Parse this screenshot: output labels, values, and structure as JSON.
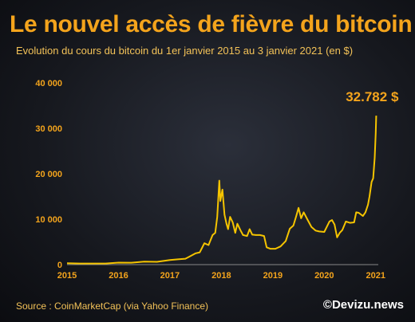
{
  "title": "Le nouvel accès de fièvre du bitcoin",
  "subtitle": "Evolution du cours du bitcoin du 1er janvier 2015 au 3 janvier 2021 (en $)",
  "source": "Source : CoinMarketCap (via Yahoo Finance)",
  "brand": "©Devizu.news",
  "colors": {
    "accent": "#f4a41c",
    "line": "#f5c400"
  },
  "chart_data": {
    "type": "line",
    "xlim": [
      2015.0,
      2021.05
    ],
    "ylim": [
      0,
      40000
    ],
    "x_ticks": [
      "2015",
      "2016",
      "2017",
      "2018",
      "2019",
      "2020",
      "2021"
    ],
    "y_ticks": [
      "0",
      "10 000",
      "20 000",
      "30 000",
      "40 000"
    ],
    "y_tick_values": [
      0,
      10000,
      20000,
      30000,
      40000
    ],
    "grid": false,
    "annotation": {
      "text": "32.782 $",
      "x": 2021.01,
      "y": 32782
    },
    "series": [
      {
        "x": [
          2015.0,
          2015.25,
          2015.5,
          2015.75,
          2016.0,
          2016.25,
          2016.5,
          2016.75,
          2017.0,
          2017.15,
          2017.3,
          2017.4,
          2017.5,
          2017.58,
          2017.67,
          2017.75,
          2017.83,
          2017.88,
          2017.92,
          2017.96,
          2017.98,
          2018.02,
          2018.06,
          2018.1,
          2018.13,
          2018.17,
          2018.22,
          2018.27,
          2018.31,
          2018.37,
          2018.42,
          2018.5,
          2018.55,
          2018.6,
          2018.67,
          2018.75,
          2018.83,
          2018.88,
          2018.95,
          2019.05,
          2019.15,
          2019.25,
          2019.33,
          2019.4,
          2019.45,
          2019.5,
          2019.55,
          2019.6,
          2019.67,
          2019.75,
          2019.83,
          2019.9,
          2020.0,
          2020.1,
          2020.15,
          2020.2,
          2020.25,
          2020.3,
          2020.35,
          2020.42,
          2020.5,
          2020.58,
          2020.62,
          2020.67,
          2020.75,
          2020.8,
          2020.85,
          2020.88,
          2020.92,
          2020.95,
          2020.98,
          2021.0,
          2021.01
        ],
        "y": [
          300,
          250,
          250,
          240,
          430,
          420,
          650,
          610,
          1000,
          1150,
          1300,
          1900,
          2500,
          2700,
          4700,
          4300,
          6500,
          7000,
          10500,
          18500,
          14000,
          16500,
          11000,
          9000,
          7800,
          10500,
          9300,
          7000,
          9000,
          7600,
          6500,
          6300,
          7800,
          6600,
          6500,
          6500,
          6300,
          3800,
          3500,
          3500,
          4000,
          5200,
          7900,
          8600,
          10500,
          12500,
          10200,
          11500,
          10000,
          8300,
          7500,
          7300,
          7200,
          9500,
          9800,
          8800,
          6000,
          7000,
          7600,
          9500,
          9200,
          9300,
          11500,
          11400,
          10700,
          11500,
          13200,
          15000,
          18200,
          19000,
          23500,
          29000,
          32782
        ]
      }
    ]
  }
}
